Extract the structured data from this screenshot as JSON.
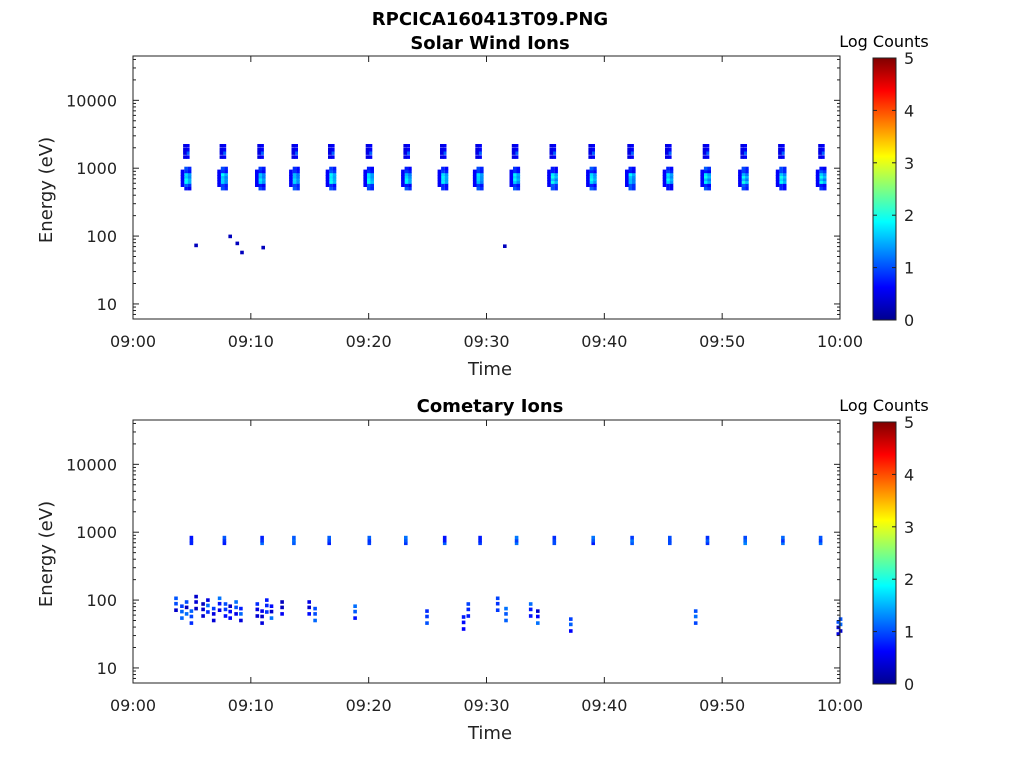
{
  "figure_title": "RPCICA160413T09.PNG",
  "chart_data": [
    {
      "type": "heatmap",
      "title": "Solar Wind Ions",
      "xlabel": "Time",
      "ylabel": "Energy (eV)",
      "yscale": "log",
      "xlim": [
        "09:00",
        "10:00"
      ],
      "ylim": [
        6,
        45000
      ],
      "xticks": [
        "09:00",
        "09:10",
        "09:20",
        "09:30",
        "09:40",
        "09:50",
        "10:00"
      ],
      "yticks": [
        "10",
        "100",
        "1000",
        "10000"
      ],
      "colorbar": {
        "label": "Log Counts",
        "ticks": [
          "0",
          "1",
          "2",
          "3",
          "4",
          "5"
        ],
        "colormap": "jet"
      },
      "bursts_minutes": [
        4.5,
        7.6,
        10.8,
        13.7,
        16.8,
        20.0,
        23.2,
        26.3,
        29.3,
        32.4,
        35.6,
        38.9,
        42.2,
        45.4,
        48.6,
        51.8,
        55.0,
        58.4
      ],
      "main_peak_energy_eV": 750,
      "secondary_peak_energy_eV": 1600,
      "peak_log_counts": 2.0,
      "low_energy_minutes": [
        5.2,
        8.1,
        8.7,
        9.1,
        10.9,
        31.4
      ],
      "low_energy_eV": [
        70,
        95,
        75,
        55,
        65,
        68
      ]
    },
    {
      "type": "heatmap",
      "title": "Cometary Ions",
      "xlabel": "Time",
      "ylabel": "Energy (eV)",
      "yscale": "log",
      "xlim": [
        "09:00",
        "10:00"
      ],
      "ylim": [
        6,
        45000
      ],
      "xticks": [
        "09:00",
        "09:10",
        "09:20",
        "09:30",
        "09:40",
        "09:50",
        "10:00"
      ],
      "yticks": [
        "10",
        "100",
        "1000",
        "10000"
      ],
      "colorbar": {
        "label": "Log Counts",
        "ticks": [
          "0",
          "1",
          "2",
          "3",
          "4",
          "5"
        ],
        "colormap": "jet"
      },
      "high_band_minutes": [
        4.8,
        7.6,
        10.8,
        13.5,
        16.5,
        19.9,
        23.0,
        26.3,
        29.3,
        32.4,
        35.6,
        38.9,
        42.2,
        45.4,
        48.6,
        51.8,
        55.0,
        58.2
      ],
      "high_band_energy_eV": 750,
      "low_band_minutes": [
        3.5,
        4.0,
        4.4,
        4.8,
        5.2,
        5.8,
        6.2,
        6.7,
        7.2,
        7.7,
        8.1,
        8.6,
        9.0,
        10.4,
        10.8,
        11.2,
        11.6,
        12.5,
        14.8,
        15.3,
        18.7,
        24.8,
        27.9,
        28.3,
        30.8,
        31.5,
        33.6,
        34.2,
        37.0,
        47.6,
        59.7,
        59.9
      ],
      "low_band_energy_eV": [
        85,
        65,
        75,
        55,
        90,
        70,
        80,
        60,
        85,
        70,
        65,
        75,
        60,
        70,
        55,
        80,
        65,
        75,
        75,
        60,
        65,
        55,
        45,
        70,
        85,
        60,
        70,
        55,
        42,
        55,
        38,
        42
      ],
      "peak_log_counts": 1.3
    }
  ]
}
